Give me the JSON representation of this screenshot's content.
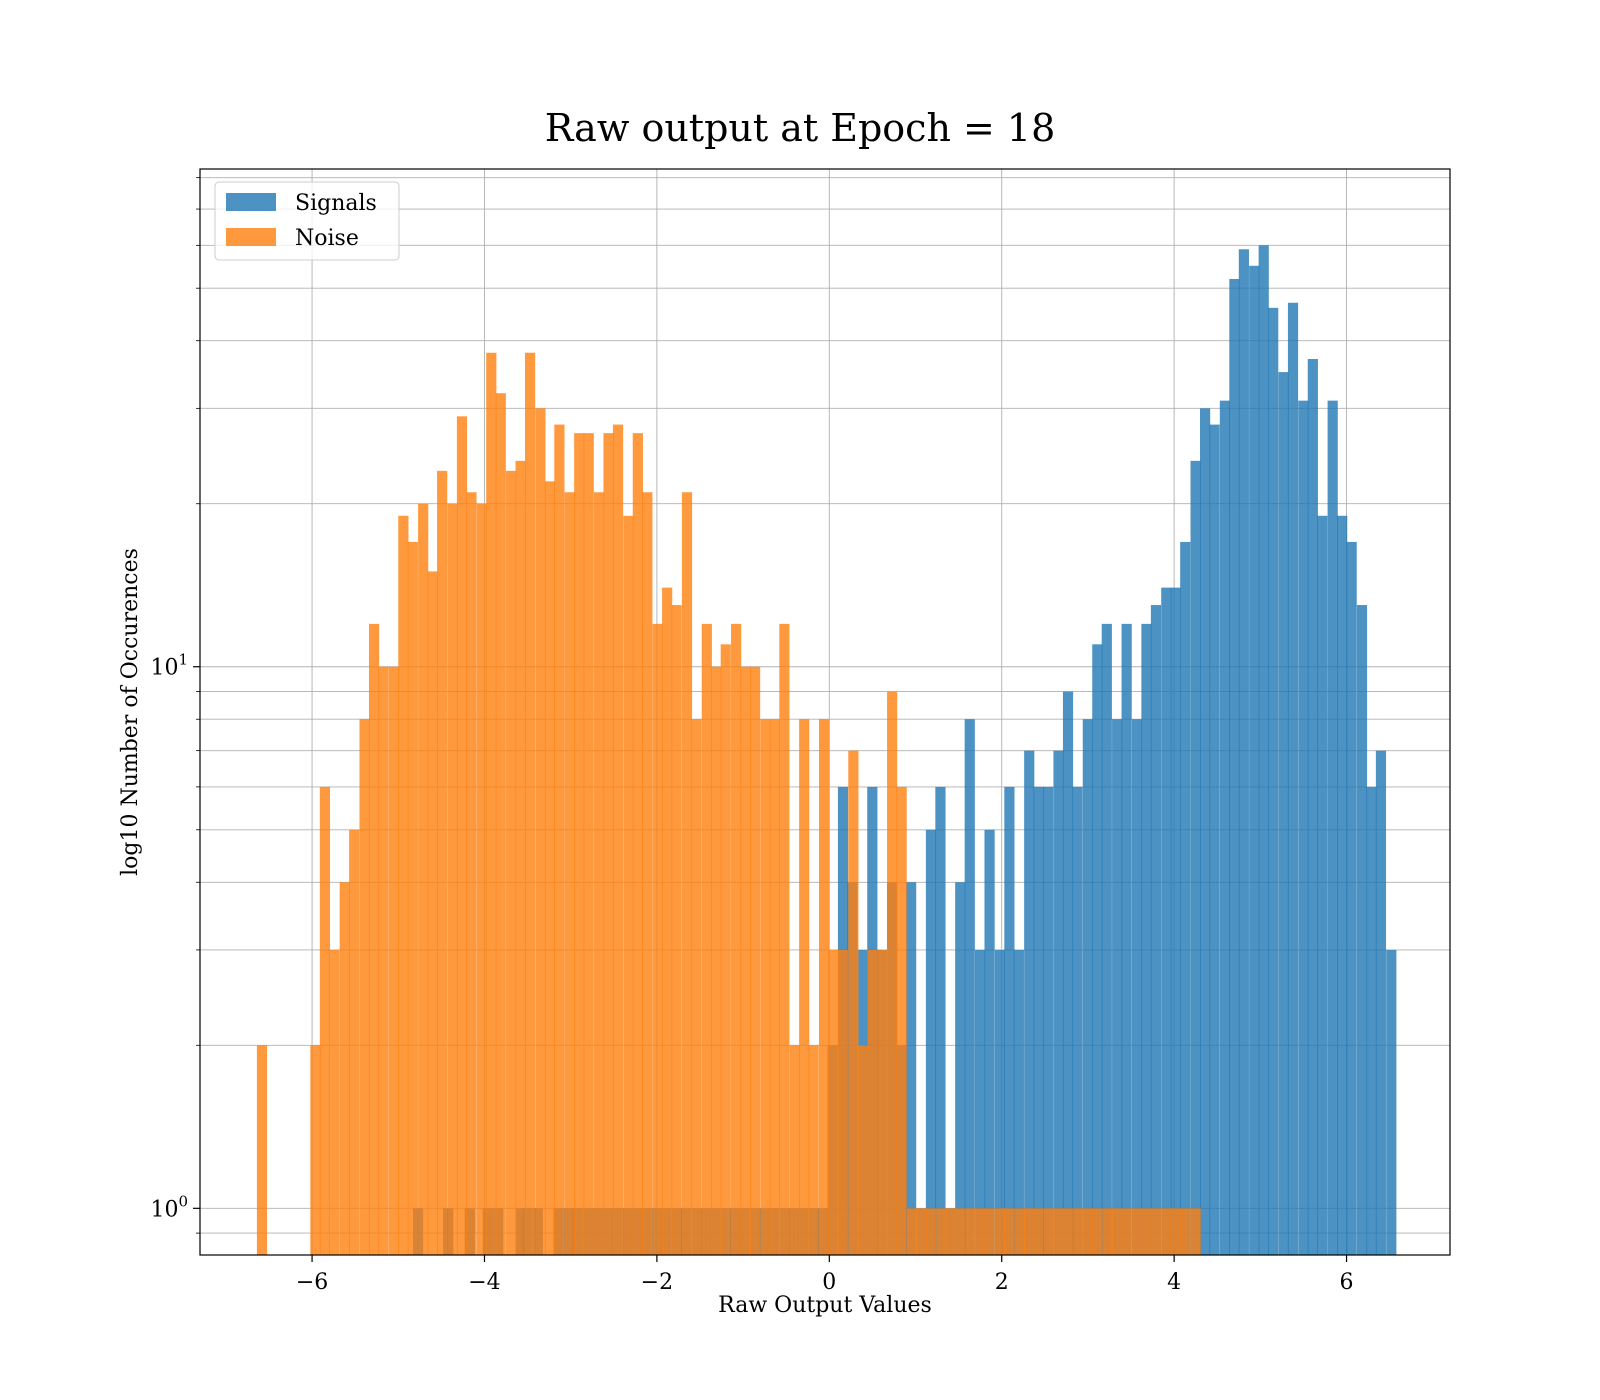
{
  "chart_data": {
    "type": "bar",
    "title": "Raw output at Epoch = 18",
    "xlabel": "Raw Output Values",
    "ylabel": "log10 Number of Occurences",
    "y_scale": "log",
    "xlim": [
      -7.3,
      7.2
    ],
    "ylim": [
      0.82,
      83
    ],
    "x_ticks": [
      -6,
      -4,
      -2,
      0,
      2,
      4,
      6
    ],
    "x_tick_labels": [
      "−6",
      "−4",
      "−2",
      "0",
      "2",
      "4",
      "6"
    ],
    "y_ticks": [
      1,
      10
    ],
    "y_tick_labels": [
      {
        "base": "10",
        "exp": "0"
      },
      {
        "base": "10",
        "exp": "1"
      }
    ],
    "grid": true,
    "legend_position": "top-left",
    "colors": {
      "signals": "#1f77b4",
      "noise": "#ff7f0e"
    },
    "series": [
      {
        "name": "Signals",
        "x": [
          -4.83,
          -4.48,
          -4.23,
          -4.02,
          -3.9,
          -3.64,
          -3.56,
          -3.44,
          -3.2,
          -3.08,
          -2.98,
          -2.86,
          -2.74,
          -2.63,
          -2.52,
          -2.4,
          -2.29,
          -2.18,
          -2.06,
          -1.95,
          -1.83,
          -1.72,
          -1.6,
          -1.49,
          -1.38,
          -1.26,
          -1.15,
          -1.04,
          -0.92,
          -0.81,
          -0.7,
          -0.58,
          -0.47,
          -0.36,
          -0.24,
          -0.13,
          -0.02,
          0.1,
          0.21,
          0.33,
          0.44,
          0.55,
          0.67,
          0.78,
          0.89,
          1.01,
          1.12,
          1.23,
          1.35,
          1.46,
          1.57,
          1.69,
          1.8,
          1.92,
          2.03,
          2.14,
          2.26,
          2.37,
          2.48,
          2.6,
          2.71,
          2.82,
          2.94,
          3.05,
          3.16,
          3.28,
          3.39,
          3.51,
          3.62,
          3.73,
          3.85,
          3.96,
          4.07,
          4.19,
          4.3,
          4.41,
          4.53,
          4.64,
          4.75,
          4.87,
          4.98,
          5.09,
          5.21,
          5.32,
          5.44,
          5.55,
          5.66,
          5.78,
          5.89,
          6.0,
          6.12,
          6.23,
          6.34,
          6.46
        ],
        "values": [
          1,
          1,
          1,
          1,
          1,
          1,
          1,
          1,
          1,
          1,
          1,
          1,
          1,
          1,
          1,
          1,
          1,
          1,
          1,
          1,
          1,
          1,
          1,
          1,
          1,
          1,
          1,
          1,
          1,
          1,
          1,
          1,
          1,
          1,
          1,
          1,
          2,
          6,
          4,
          3,
          6,
          3,
          4,
          2,
          4,
          1,
          5,
          6,
          1,
          4,
          8,
          3,
          5,
          3,
          6,
          3,
          7,
          6,
          6,
          7,
          9,
          6,
          8,
          11,
          12,
          8,
          12,
          8,
          12,
          13,
          14,
          14,
          17,
          24,
          30,
          28,
          31,
          52,
          59,
          55,
          60,
          46,
          35,
          47,
          31,
          37,
          19,
          31,
          19,
          17,
          13,
          6,
          7,
          3
        ]
      },
      {
        "name": "Noise",
        "x": [
          -6.64,
          -6.02,
          -5.91,
          -5.8,
          -5.68,
          -5.57,
          -5.45,
          -5.34,
          -5.23,
          -5.11,
          -5.0,
          -4.89,
          -4.77,
          -4.66,
          -4.55,
          -4.43,
          -4.32,
          -4.21,
          -4.09,
          -3.98,
          -3.87,
          -3.75,
          -3.64,
          -3.53,
          -3.41,
          -3.3,
          -3.19,
          -3.07,
          -2.96,
          -2.85,
          -2.73,
          -2.62,
          -2.51,
          -2.39,
          -2.28,
          -2.17,
          -2.05,
          -1.94,
          -1.83,
          -1.71,
          -1.6,
          -1.48,
          -1.37,
          -1.26,
          -1.14,
          -1.03,
          -0.92,
          -0.8,
          -0.69,
          -0.58,
          -0.46,
          -0.35,
          -0.24,
          -0.12,
          -0.01,
          0.1,
          0.22,
          0.33,
          0.44,
          0.56,
          0.67,
          0.78,
          0.9,
          1.01,
          1.12,
          1.24,
          1.35,
          1.46,
          1.58,
          1.69,
          1.8,
          1.92,
          2.03,
          2.15,
          2.26,
          2.37,
          2.49,
          2.6,
          2.71,
          2.83,
          2.94,
          3.05,
          3.17,
          3.28,
          3.39,
          3.51,
          3.62,
          3.73,
          3.85,
          3.96,
          4.07,
          4.19
        ],
        "values": [
          2,
          2,
          6,
          3,
          4,
          5,
          8,
          12,
          10,
          10,
          19,
          17,
          20,
          15,
          23,
          20,
          29,
          21,
          20,
          38,
          32,
          23,
          24,
          38,
          30,
          22,
          28,
          21,
          27,
          27,
          21,
          27,
          28,
          19,
          27,
          21,
          12,
          14,
          13,
          21,
          8,
          12,
          10,
          11,
          12,
          10,
          10,
          8,
          8,
          12,
          2,
          8,
          2,
          8,
          3,
          3,
          7,
          2,
          3,
          3,
          9,
          6,
          1,
          1,
          1,
          1,
          1,
          1,
          1,
          1,
          1,
          1,
          1,
          1,
          1,
          1,
          1,
          1,
          1,
          1,
          1,
          1,
          1,
          1,
          1,
          1,
          1,
          1,
          1,
          1,
          1,
          1
        ]
      }
    ]
  }
}
